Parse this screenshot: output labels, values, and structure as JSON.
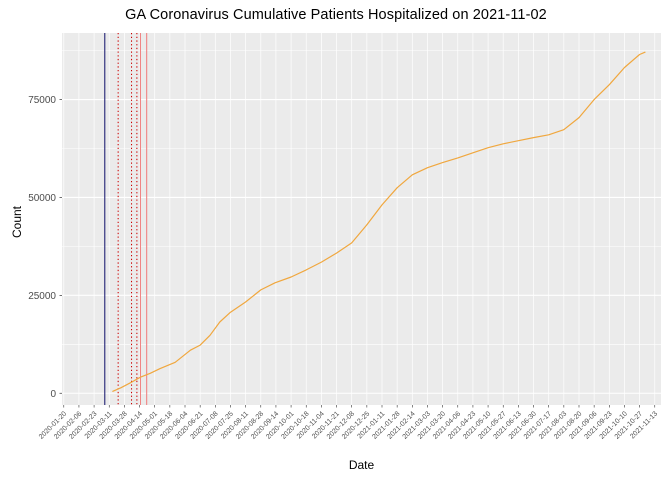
{
  "chart_data": {
    "type": "line",
    "title": "GA Coronavirus Cumulative Patients Hospitalized on 2021-11-02",
    "xlabel": "Date",
    "ylabel": "Count",
    "x_domain": [
      "2020-01-18",
      "2021-11-20"
    ],
    "y_axis_range": [
      -3000,
      92000
    ],
    "ylim": [
      0,
      90000
    ],
    "y_ticks": [
      0,
      25000,
      50000,
      75000
    ],
    "y_minor_ticks": [
      12500,
      37500,
      62500,
      87500
    ],
    "x_ticks": [
      "2020-01-20",
      "2020-02-06",
      "2020-02-23",
      "2020-03-11",
      "2020-03-28",
      "2020-04-14",
      "2020-05-01",
      "2020-05-18",
      "2020-06-04",
      "2020-06-21",
      "2020-07-08",
      "2020-07-25",
      "2020-08-11",
      "2020-08-28",
      "2020-09-14",
      "2020-10-01",
      "2020-10-18",
      "2020-11-04",
      "2020-11-21",
      "2020-12-08",
      "2020-12-25",
      "2021-01-11",
      "2021-01-28",
      "2021-02-14",
      "2021-03-03",
      "2021-03-20",
      "2021-04-06",
      "2021-04-23",
      "2021-05-10",
      "2021-05-27",
      "2021-06-13",
      "2021-06-30",
      "2021-07-17",
      "2021-08-03",
      "2021-08-20",
      "2021-09-06",
      "2021-09-23",
      "2021-10-10",
      "2021-10-27",
      "2021-11-13"
    ],
    "series": [
      {
        "name": "cumulative-hospitalized",
        "color": "#F0A73E",
        "dates": [
          "2020-03-15",
          "2020-03-24",
          "2020-04-04",
          "2020-04-15",
          "2020-04-26",
          "2020-05-07",
          "2020-05-24",
          "2020-06-10",
          "2020-06-21",
          "2020-07-02",
          "2020-07-13",
          "2020-07-25",
          "2020-08-11",
          "2020-08-28",
          "2020-09-13",
          "2020-10-01",
          "2020-10-18",
          "2020-11-04",
          "2020-11-21",
          "2020-12-08",
          "2020-12-25",
          "2021-01-11",
          "2021-01-28",
          "2021-02-14",
          "2021-03-03",
          "2021-03-20",
          "2021-04-06",
          "2021-04-23",
          "2021-05-10",
          "2021-05-27",
          "2021-06-13",
          "2021-06-30",
          "2021-07-17",
          "2021-08-03",
          "2021-08-20",
          "2021-09-06",
          "2021-09-23",
          "2021-10-10",
          "2021-10-27",
          "2021-11-02"
        ],
        "values": [
          500,
          1400,
          2700,
          4100,
          5100,
          6300,
          7900,
          11000,
          12300,
          14800,
          18200,
          20700,
          23300,
          26400,
          28200,
          29700,
          31500,
          33500,
          35800,
          38400,
          43000,
          48100,
          52500,
          55800,
          57600,
          58900,
          60100,
          61400,
          62700,
          63700,
          64500,
          65300,
          66000,
          67300,
          70400,
          75000,
          78800,
          83200,
          86500,
          87100
        ]
      }
    ],
    "vlines": [
      {
        "date": "2020-03-06",
        "color": "#191970",
        "style": "solid"
      },
      {
        "date": "2020-03-21",
        "color": "#CC0000",
        "style": "dotted"
      },
      {
        "date": "2020-04-05",
        "color": "#CC0000",
        "style": "dotted"
      },
      {
        "date": "2020-04-11",
        "color": "#CC0000",
        "style": "dotted"
      },
      {
        "date": "2020-04-15",
        "color": "#F08080",
        "style": "solid"
      },
      {
        "date": "2020-04-22",
        "color": "#F08080",
        "style": "solid"
      }
    ],
    "colors": {
      "panel_bg": "#EBEBEB",
      "grid": "#FFFFFF",
      "tick_label": "#4D4D4D",
      "axis_tick": "#333333",
      "title": "#000000"
    },
    "legend": "none",
    "grid": "on"
  }
}
